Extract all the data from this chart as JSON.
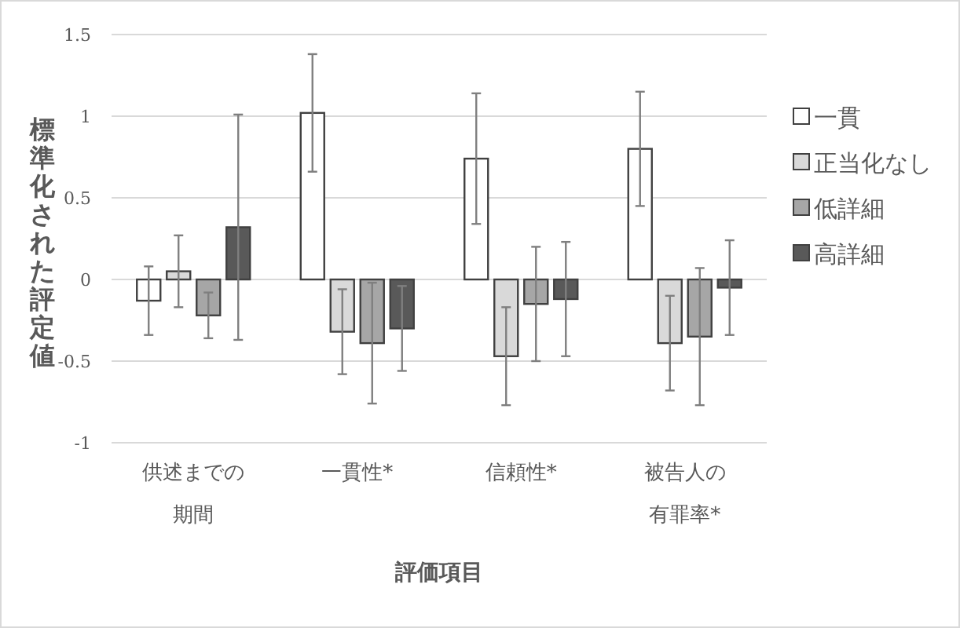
{
  "chart_data": {
    "type": "bar",
    "xlabel": "評価項目",
    "ylabel": "標準化された評定値",
    "categories": [
      "供述までの期間",
      "一貫性*",
      "信頼性*",
      "被告人の有罪率*"
    ],
    "series": [
      {
        "name": "一貫",
        "color": "#ffffff",
        "values": [
          -0.13,
          1.02,
          0.74,
          0.8
        ],
        "errors": [
          0.21,
          0.36,
          0.4,
          0.35
        ]
      },
      {
        "name": "正当化なし",
        "color": "#d9d9d9",
        "values": [
          0.05,
          -0.32,
          -0.47,
          -0.39
        ],
        "errors": [
          0.22,
          0.26,
          0.3,
          0.29
        ]
      },
      {
        "name": "低詳細",
        "color": "#a6a6a6",
        "values": [
          -0.22,
          -0.39,
          -0.15,
          -0.35
        ],
        "errors": [
          0.14,
          0.37,
          0.35,
          0.42
        ]
      },
      {
        "name": "高詳細",
        "color": "#595959",
        "values": [
          0.32,
          -0.3,
          -0.12,
          -0.05
        ],
        "errors": [
          0.69,
          0.26,
          0.35,
          0.29
        ]
      }
    ],
    "ylim": [
      -1,
      1.5
    ],
    "yticks": [
      -1,
      -0.5,
      0,
      0.5,
      1,
      1.5
    ],
    "grid": "y",
    "legend": "right"
  }
}
